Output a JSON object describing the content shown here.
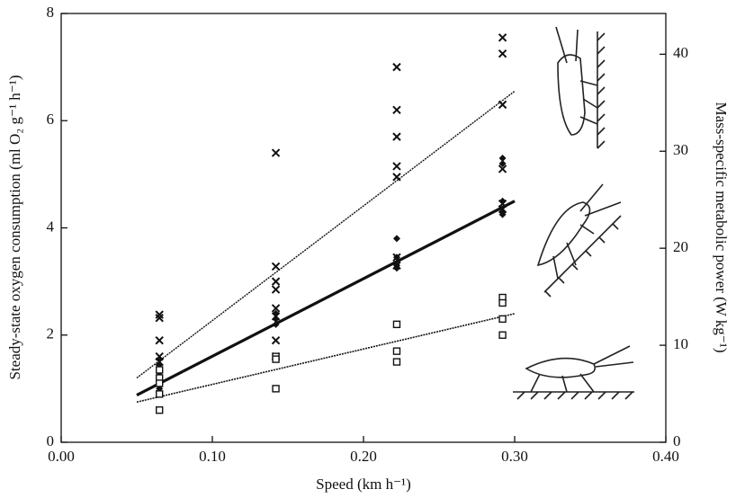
{
  "chart_data": {
    "type": "scatter",
    "x_label": "Speed (km h⁻¹)",
    "y_label": "Steady-state oxygen consumption (ml O₂ g⁻¹ h⁻¹)",
    "y2_label": "Mass-specific metabolic power (W kg⁻¹)",
    "xlim": [
      0,
      0.4
    ],
    "xticks": [
      {
        "value": 0,
        "label": "0.00"
      },
      {
        "value": 0.1,
        "label": "0.10"
      },
      {
        "value": 0.2,
        "label": "0.20"
      },
      {
        "value": 0.3,
        "label": "0.30"
      },
      {
        "value": 0.4,
        "label": "0.40"
      }
    ],
    "ylim": [
      0,
      8
    ],
    "yticks": [
      0,
      2,
      4,
      6,
      8
    ],
    "y2lim": [
      0,
      44.2
    ],
    "y2ticks": [
      0,
      10,
      20,
      30,
      40
    ],
    "series": [
      {
        "marker": "x",
        "color": "#111",
        "x": [
          0.065,
          0.065,
          0.065,
          0.065,
          0.065,
          0.142,
          0.142,
          0.142,
          0.142,
          0.142,
          0.142,
          0.142,
          0.142,
          0.222,
          0.222,
          0.222,
          0.222,
          0.222,
          0.222,
          0.222,
          0.292,
          0.292,
          0.292,
          0.292,
          0.292,
          0.292
        ],
        "values": [
          2.38,
          2.32,
          1.9,
          1.6,
          1.5,
          5.4,
          3.28,
          3.0,
          2.85,
          2.5,
          2.35,
          1.9,
          1.6,
          7.0,
          6.2,
          5.7,
          5.15,
          4.95,
          3.45,
          3.3,
          7.55,
          7.25,
          6.3,
          5.1,
          4.45,
          4.35
        ]
      },
      {
        "marker": "diamond",
        "color": "#111",
        "x": [
          0.065,
          0.065,
          0.065,
          0.065,
          0.065,
          0.142,
          0.142,
          0.142,
          0.142,
          0.222,
          0.222,
          0.222,
          0.222,
          0.222,
          0.292,
          0.292,
          0.292,
          0.292,
          0.292
        ],
        "values": [
          1.55,
          1.45,
          1.3,
          1.0,
          0.9,
          2.4,
          2.3,
          2.2,
          1.55,
          3.8,
          3.45,
          3.3,
          3.25,
          2.2,
          5.3,
          5.2,
          4.5,
          4.3,
          4.25
        ]
      },
      {
        "marker": "square",
        "color": "#111",
        "x": [
          0.065,
          0.065,
          0.065,
          0.065,
          0.065,
          0.142,
          0.142,
          0.142,
          0.222,
          0.222,
          0.222,
          0.292,
          0.292,
          0.292,
          0.292
        ],
        "values": [
          1.35,
          1.2,
          1.1,
          0.9,
          0.6,
          1.6,
          1.55,
          1.0,
          2.2,
          1.7,
          1.5,
          2.7,
          2.6,
          2.3,
          2.0
        ]
      }
    ],
    "fits": [
      {
        "x": [
          0.05,
          0.3
        ],
        "values": [
          1.2,
          6.55
        ],
        "width": 1.4,
        "dash": true
      },
      {
        "x": [
          0.05,
          0.3
        ],
        "values": [
          0.88,
          4.5
        ],
        "width": 3.2,
        "dash": false
      },
      {
        "x": [
          0.05,
          0.3
        ],
        "values": [
          0.75,
          2.4
        ],
        "width": 1.6,
        "dash": true
      }
    ]
  }
}
